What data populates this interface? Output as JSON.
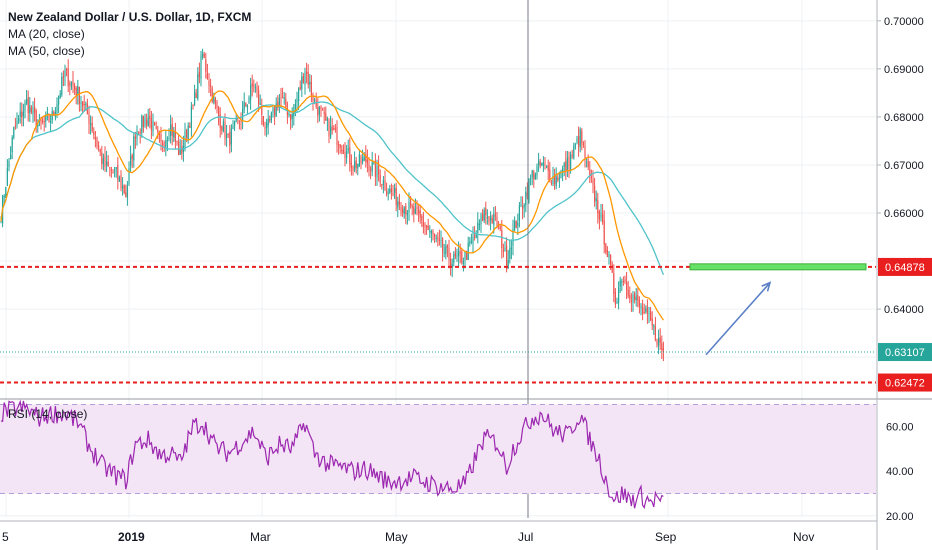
{
  "legend": {
    "title": "New Zealand Dollar / U.S. Dollar, 1D, FXCM",
    "ma20": "MA (20, close)",
    "ma50": "MA (50, close)",
    "rsi": "RSI (14, close)"
  },
  "colors": {
    "up": "#26a69a",
    "down": "#ef5350",
    "ma20": "#ff9800",
    "ma50": "#4fc3c9",
    "rsi": "#9c27b0",
    "rsi_band": "#f3e5f5",
    "level": "#e91e1e",
    "target_zone": "#66e066",
    "arrow": "#5b7fc7"
  },
  "chart_data": {
    "type": "candlestick",
    "price_axis": {
      "ticks": [
        "0.70000",
        "0.69000",
        "0.68000",
        "0.67000",
        "0.66000",
        "0.64000"
      ],
      "tick_values": [
        0.7,
        0.69,
        0.68,
        0.67,
        0.66,
        0.64
      ],
      "range": [
        0.6215,
        0.7035
      ]
    },
    "rsi_axis": {
      "ticks": [
        "60.00",
        "40.00",
        "20.00"
      ],
      "tick_values": [
        60,
        40,
        20
      ],
      "range": [
        19,
        72
      ],
      "band": [
        30,
        70
      ]
    },
    "time_axis": {
      "labels": [
        "5",
        "2019",
        "Mar",
        "May",
        "Jul",
        "Sep",
        "Nov"
      ]
    },
    "price_labels": {
      "resistance": {
        "value": 0.64878,
        "text": "0.64878"
      },
      "current": {
        "value": 0.63107,
        "text": "0.63107"
      },
      "support": {
        "value": 0.62472,
        "text": "0.62472"
      }
    },
    "target_zone": {
      "value": 0.6488
    },
    "arrow": {
      "from": 0.6305,
      "to": 0.6455
    },
    "close_anchors": [
      [
        0,
        0.66
      ],
      [
        8,
        0.677
      ],
      [
        16,
        0.683
      ],
      [
        24,
        0.678
      ],
      [
        32,
        0.68
      ],
      [
        40,
        0.689
      ],
      [
        48,
        0.685
      ],
      [
        56,
        0.679
      ],
      [
        64,
        0.67
      ],
      [
        72,
        0.668
      ],
      [
        78,
        0.664
      ],
      [
        84,
        0.677
      ],
      [
        92,
        0.68
      ],
      [
        100,
        0.674
      ],
      [
        106,
        0.678
      ],
      [
        112,
        0.672
      ],
      [
        120,
        0.682
      ],
      [
        126,
        0.693
      ],
      [
        134,
        0.682
      ],
      [
        142,
        0.675
      ],
      [
        150,
        0.68
      ],
      [
        158,
        0.687
      ],
      [
        166,
        0.677
      ],
      [
        174,
        0.684
      ],
      [
        182,
        0.68
      ],
      [
        190,
        0.69
      ],
      [
        196,
        0.683
      ],
      [
        204,
        0.678
      ],
      [
        212,
        0.675
      ],
      [
        220,
        0.67
      ],
      [
        228,
        0.671
      ],
      [
        236,
        0.668
      ],
      [
        242,
        0.665
      ],
      [
        250,
        0.662
      ],
      [
        258,
        0.66
      ],
      [
        266,
        0.657
      ],
      [
        274,
        0.653
      ],
      [
        282,
        0.65
      ],
      [
        290,
        0.651
      ],
      [
        296,
        0.655
      ],
      [
        302,
        0.66
      ],
      [
        310,
        0.658
      ],
      [
        316,
        0.65
      ],
      [
        320,
        0.656
      ],
      [
        326,
        0.662
      ],
      [
        332,
        0.668
      ],
      [
        338,
        0.67
      ],
      [
        346,
        0.667
      ],
      [
        354,
        0.67
      ],
      [
        362,
        0.676
      ],
      [
        368,
        0.667
      ],
      [
        374,
        0.66
      ],
      [
        380,
        0.65
      ],
      [
        384,
        0.642
      ],
      [
        388,
        0.647
      ],
      [
        394,
        0.643
      ],
      [
        400,
        0.64
      ],
      [
        406,
        0.637
      ],
      [
        410,
        0.634
      ],
      [
        414,
        0.631
      ]
    ],
    "rsi_anchors": [
      [
        0,
        66
      ],
      [
        8,
        68
      ],
      [
        16,
        68
      ],
      [
        24,
        64
      ],
      [
        32,
        66
      ],
      [
        40,
        66
      ],
      [
        48,
        62
      ],
      [
        56,
        50
      ],
      [
        64,
        42
      ],
      [
        72,
        38
      ],
      [
        78,
        36
      ],
      [
        84,
        52
      ],
      [
        92,
        54
      ],
      [
        100,
        47
      ],
      [
        106,
        48
      ],
      [
        112,
        44
      ],
      [
        120,
        60
      ],
      [
        126,
        62
      ],
      [
        134,
        51
      ],
      [
        142,
        48
      ],
      [
        150,
        53
      ],
      [
        158,
        58
      ],
      [
        166,
        46
      ],
      [
        174,
        52
      ],
      [
        182,
        50
      ],
      [
        190,
        62
      ],
      [
        196,
        48
      ],
      [
        204,
        43
      ],
      [
        212,
        42
      ],
      [
        220,
        40
      ],
      [
        228,
        41
      ],
      [
        236,
        38
      ],
      [
        242,
        35
      ],
      [
        250,
        36
      ],
      [
        258,
        37
      ],
      [
        266,
        35
      ],
      [
        274,
        33
      ],
      [
        282,
        32
      ],
      [
        290,
        34
      ],
      [
        296,
        45
      ],
      [
        302,
        55
      ],
      [
        310,
        53
      ],
      [
        316,
        42
      ],
      [
        320,
        50
      ],
      [
        326,
        58
      ],
      [
        332,
        64
      ],
      [
        338,
        66
      ],
      [
        346,
        58
      ],
      [
        354,
        56
      ],
      [
        362,
        66
      ],
      [
        368,
        54
      ],
      [
        374,
        45
      ],
      [
        380,
        32
      ],
      [
        384,
        27
      ],
      [
        388,
        30
      ],
      [
        394,
        27
      ],
      [
        400,
        29
      ],
      [
        406,
        26
      ],
      [
        410,
        28
      ],
      [
        414,
        25
      ]
    ]
  }
}
